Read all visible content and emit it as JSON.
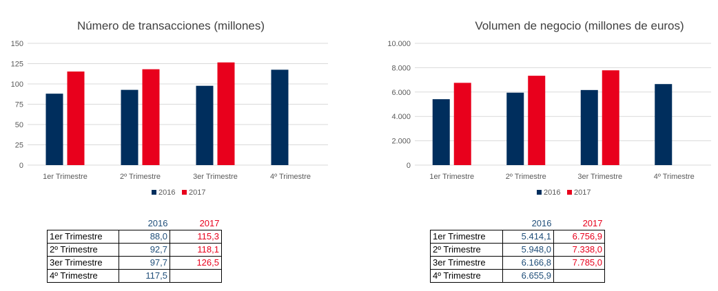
{
  "colors": {
    "s2016": "#002e5d",
    "s2017": "#e8001c",
    "grid": "#d9d9d9",
    "axis_text": "#595959",
    "title": "#404040"
  },
  "chart_data": [
    {
      "type": "bar",
      "title": "Número de transacciones (millones)",
      "categories": [
        "1er Trimestre",
        "2º Trimestre",
        "3er Trimestre",
        "4º Trimestre"
      ],
      "series": [
        {
          "name": "2016",
          "values": [
            88.0,
            92.7,
            97.7,
            117.5
          ]
        },
        {
          "name": "2017",
          "values": [
            115.3,
            118.1,
            126.5,
            null
          ]
        }
      ],
      "ylim": [
        0,
        150
      ],
      "yticks": [
        0,
        25,
        50,
        75,
        100,
        125,
        150
      ],
      "ytick_labels": [
        "0",
        "25",
        "50",
        "75",
        "100",
        "125",
        "150"
      ],
      "legend": "bottom",
      "grid": true
    },
    {
      "type": "bar",
      "title": "Volumen de negocio (millones de euros)",
      "categories": [
        "1er Trimestre",
        "2º Trimestre",
        "3er Trimestre",
        "4º Trimestre"
      ],
      "series": [
        {
          "name": "2016",
          "values": [
            5414.1,
            5948.0,
            6166.8,
            6655.9
          ]
        },
        {
          "name": "2017",
          "values": [
            6756.9,
            7338.0,
            7785.0,
            null
          ]
        }
      ],
      "ylim": [
        0,
        10000
      ],
      "yticks": [
        0,
        2000,
        4000,
        6000,
        8000,
        10000
      ],
      "ytick_labels": [
        "0",
        "2.000",
        "4.000",
        "6.000",
        "8.000",
        "10.000"
      ],
      "legend": "bottom",
      "grid": true
    }
  ],
  "tables": [
    {
      "header": [
        "2016",
        "2017"
      ],
      "rows": [
        {
          "label": "1er Trimestre",
          "v2016": "88,0",
          "v2017": "115,3"
        },
        {
          "label": "2º Trimestre",
          "v2016": "92,7",
          "v2017": "118,1"
        },
        {
          "label": "3er Trimestre",
          "v2016": "97,7",
          "v2017": "126,5"
        },
        {
          "label": "4º Trimestre",
          "v2016": "117,5",
          "v2017": ""
        }
      ]
    },
    {
      "header": [
        "2016",
        "2017"
      ],
      "rows": [
        {
          "label": "1er Trimestre",
          "v2016": "5.414,1",
          "v2017": "6.756,9"
        },
        {
          "label": "2º Trimestre",
          "v2016": "5.948,0",
          "v2017": "7.338,0"
        },
        {
          "label": "3er Trimestre",
          "v2016": "6.166,8",
          "v2017": "7.785,0"
        },
        {
          "label": "4º Trimestre",
          "v2016": "6.655,9",
          "v2017": ""
        }
      ]
    }
  ]
}
